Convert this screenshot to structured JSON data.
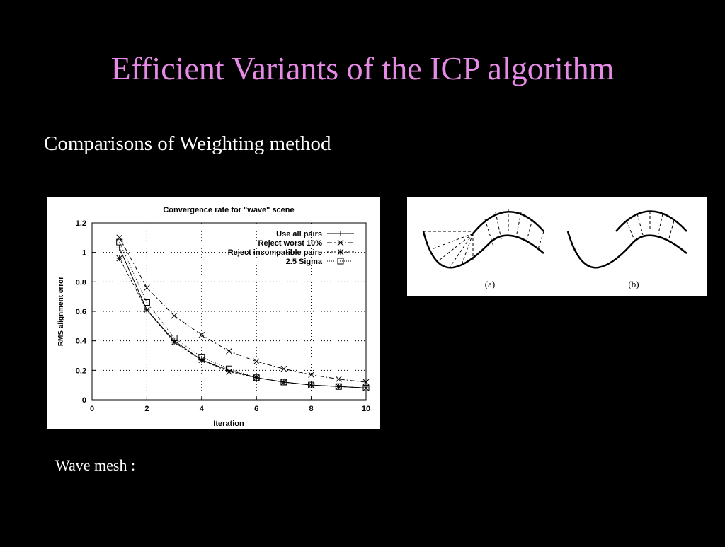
{
  "title": "Efficient Variants of the ICP algorithm",
  "subtitle": "Comparisons of Weighting method",
  "chart_data": {
    "type": "line",
    "title": "Convergence rate for \"wave\" scene",
    "x_label": "Iteration",
    "y_label": "RMS alignment error",
    "x": [
      1,
      2,
      3,
      4,
      5,
      6,
      7,
      8,
      9,
      10
    ],
    "series": [
      {
        "name": "Use all pairs",
        "color": "#000000",
        "values": [
          1.03,
          0.61,
          0.4,
          0.27,
          0.2,
          0.15,
          0.12,
          0.1,
          0.09,
          0.08
        ]
      },
      {
        "name": "Reject worst 10%",
        "color": "#000000",
        "values": [
          1.1,
          0.76,
          0.57,
          0.44,
          0.33,
          0.26,
          0.21,
          0.17,
          0.14,
          0.12
        ]
      },
      {
        "name": "Reject incompatible pairs",
        "color": "#000000",
        "values": [
          0.96,
          0.61,
          0.39,
          0.27,
          0.19,
          0.15,
          0.12,
          0.1,
          0.09,
          0.08
        ]
      },
      {
        "name": "2.5 Sigma",
        "color": "#000000",
        "values": [
          1.07,
          0.66,
          0.42,
          0.29,
          0.21,
          0.15,
          0.12,
          0.1,
          0.09,
          0.08
        ]
      }
    ],
    "xlim": [
      0,
      10
    ],
    "xticks": [
      0,
      2,
      4,
      6,
      8,
      10
    ],
    "ylim": [
      0,
      1.2
    ],
    "yticks": [
      0,
      0.2,
      0.4,
      0.6,
      0.8,
      1,
      1.2
    ],
    "grid": true,
    "legend": "top-right"
  },
  "diagram": {
    "labels": [
      "(a)",
      "(b)"
    ]
  },
  "caption": "Wave mesh :"
}
